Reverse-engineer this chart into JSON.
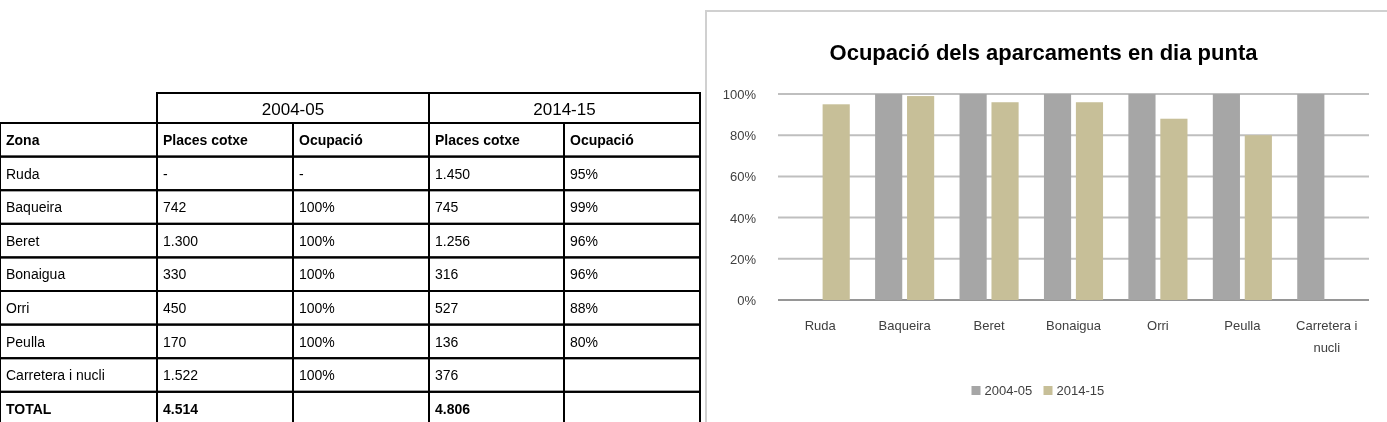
{
  "chart_data": [
    {
      "type": "other",
      "annotations": [
        "2004-05",
        "2014-15"
      ],
      "categories": [
        "Zona",
        "Places cotxe",
        "Ocupació",
        "Places cotxe",
        "Ocupació"
      ],
      "cell_labels": [
        [
          "Ruda",
          "-",
          "-",
          "1.450",
          "95%"
        ],
        [
          "Baqueira",
          "742",
          "100%",
          "745",
          "99%"
        ],
        [
          "Beret",
          "1.300",
          "100%",
          "1.256",
          "96%"
        ],
        [
          "Bonaigua",
          "330",
          "100%",
          "316",
          "96%"
        ],
        [
          "Orri",
          "450",
          "100%",
          "527",
          "88%"
        ],
        [
          "Peulla",
          "170",
          "100%",
          "136",
          "80%"
        ],
        [
          "Carretera i nucli",
          "1.522",
          "100%",
          "376",
          null
        ],
        [
          "TOTAL",
          "4.514",
          null,
          "4.806",
          null
        ]
      ]
    },
    {
      "type": "bar",
      "title": "Ocupació dels aparcaments en dia punta",
      "categories": [
        "Ruda",
        "Baqueira",
        "Beret",
        "Bonaigua",
        "Orri",
        "Peulla",
        "Carretera i nucli"
      ],
      "series": [
        {
          "name": "2004-05",
          "color": "#a6a6a6",
          "values": [
            null,
            100,
            100,
            100,
            100,
            100,
            100
          ]
        },
        {
          "name": "2014-15",
          "color": "#c7bf98",
          "values": [
            95,
            99,
            96,
            96,
            88,
            80,
            null
          ]
        }
      ],
      "ylim": [
        0,
        100
      ],
      "yticks": [
        {
          "value": 0,
          "label": "0%"
        },
        {
          "value": 20,
          "label": "20%"
        },
        {
          "value": 40,
          "label": "40%"
        },
        {
          "value": 60,
          "label": "60%"
        },
        {
          "value": 80,
          "label": "80%"
        },
        {
          "value": 100,
          "label": "100%"
        }
      ],
      "grid": "y",
      "legend": "bottom"
    }
  ]
}
